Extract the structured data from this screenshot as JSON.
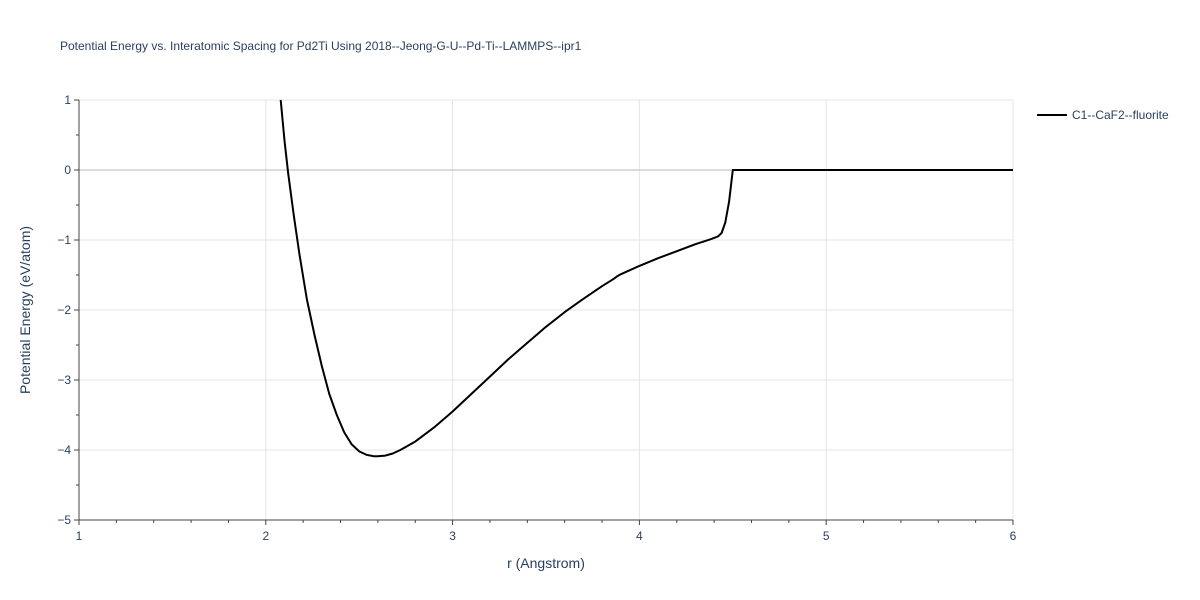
{
  "chart_data": {
    "type": "line",
    "title": "Potential Energy vs. Interatomic Spacing for Pd2Ti Using 2018--Jeong-G-U--Pd-Ti--LAMMPS--ipr1",
    "xlabel": "r (Angstrom)",
    "ylabel": "Potential Energy (eV/atom)",
    "xlim": [
      1,
      6
    ],
    "ylim": [
      -5,
      1
    ],
    "x_ticks": [
      1,
      2,
      3,
      4,
      5,
      6
    ],
    "y_ticks": [
      1,
      0,
      -1,
      -2,
      -3,
      -4,
      -5
    ],
    "x_tick_labels": [
      "1",
      "2",
      "3",
      "4",
      "5",
      "6"
    ],
    "y_tick_labels": [
      "1",
      "0",
      "−1",
      "−2",
      "−3",
      "−4",
      "−5"
    ],
    "grid": true,
    "legend_position": "top-right",
    "series": [
      {
        "name": "C1--CaF2--fluorite",
        "color": "#000000",
        "x": [
          2.08,
          2.1,
          2.12,
          2.15,
          2.18,
          2.22,
          2.26,
          2.3,
          2.34,
          2.38,
          2.42,
          2.46,
          2.5,
          2.54,
          2.58,
          2.6,
          2.64,
          2.68,
          2.72,
          2.8,
          2.9,
          3.0,
          3.1,
          3.2,
          3.3,
          3.4,
          3.5,
          3.6,
          3.7,
          3.8,
          3.86,
          3.88,
          3.9,
          3.95,
          4.0,
          4.1,
          4.2,
          4.3,
          4.38,
          4.42,
          4.44,
          4.46,
          4.48,
          4.5,
          4.55,
          5.0,
          5.5,
          6.0
        ],
        "y": [
          1.0,
          0.42,
          -0.05,
          -0.65,
          -1.2,
          -1.85,
          -2.35,
          -2.8,
          -3.2,
          -3.5,
          -3.75,
          -3.92,
          -4.02,
          -4.07,
          -4.09,
          -4.09,
          -4.08,
          -4.05,
          -4.0,
          -3.88,
          -3.68,
          -3.45,
          -3.2,
          -2.95,
          -2.7,
          -2.47,
          -2.24,
          -2.03,
          -1.84,
          -1.66,
          -1.56,
          -1.52,
          -1.49,
          -1.43,
          -1.37,
          -1.26,
          -1.16,
          -1.06,
          -0.99,
          -0.95,
          -0.9,
          -0.75,
          -0.45,
          0.0,
          0.0,
          0.0,
          0.0,
          0.0
        ]
      }
    ]
  }
}
